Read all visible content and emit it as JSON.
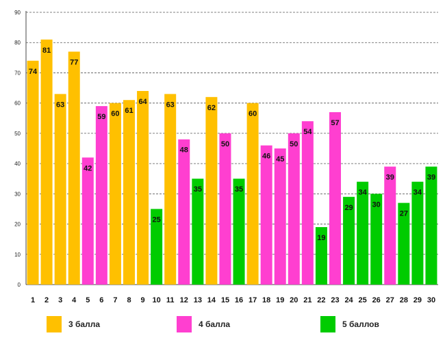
{
  "chart_data": {
    "type": "bar",
    "categories": [
      "1",
      "2",
      "3",
      "4",
      "5",
      "6",
      "7",
      "8",
      "9",
      "10",
      "11",
      "12",
      "13",
      "14",
      "15",
      "16",
      "17",
      "18",
      "19",
      "20",
      "21",
      "22",
      "23",
      "24",
      "25",
      "26",
      "27",
      "28",
      "29",
      "30"
    ],
    "values": [
      74,
      81,
      63,
      77,
      42,
      59,
      60,
      61,
      64,
      25,
      63,
      48,
      35,
      62,
      50,
      35,
      60,
      46,
      45,
      50,
      54,
      19,
      57,
      29,
      34,
      30,
      39,
      27,
      34,
      39
    ],
    "groups": [
      "3 балла",
      "3 балла",
      "3 балла",
      "3 балла",
      "4 балла",
      "4 балла",
      "3 балла",
      "3 балла",
      "3 балла",
      "5 баллов",
      "3 балла",
      "4 балла",
      "5 баллов",
      "3 балла",
      "4 балла",
      "5 баллов",
      "3 балла",
      "4 балла",
      "4 балла",
      "4 балла",
      "4 балла",
      "5 баллов",
      "4 балла",
      "5 баллов",
      "5 баллов",
      "5 баллов",
      "4 балла",
      "5 баллов",
      "5 баллов",
      "5 баллов"
    ],
    "ylim": [
      0,
      90
    ],
    "yticks": [
      0,
      10,
      20,
      30,
      40,
      50,
      60,
      70,
      80,
      90
    ],
    "grid": true,
    "legend": [
      {
        "name": "3 балла",
        "color": "#FFC000"
      },
      {
        "name": "4 балла",
        "color": "#FF3FD0"
      },
      {
        "name": "5 баллов",
        "color": "#00CC00"
      }
    ],
    "legend_position": "bottom",
    "title": "",
    "xlabel": "",
    "ylabel": ""
  }
}
